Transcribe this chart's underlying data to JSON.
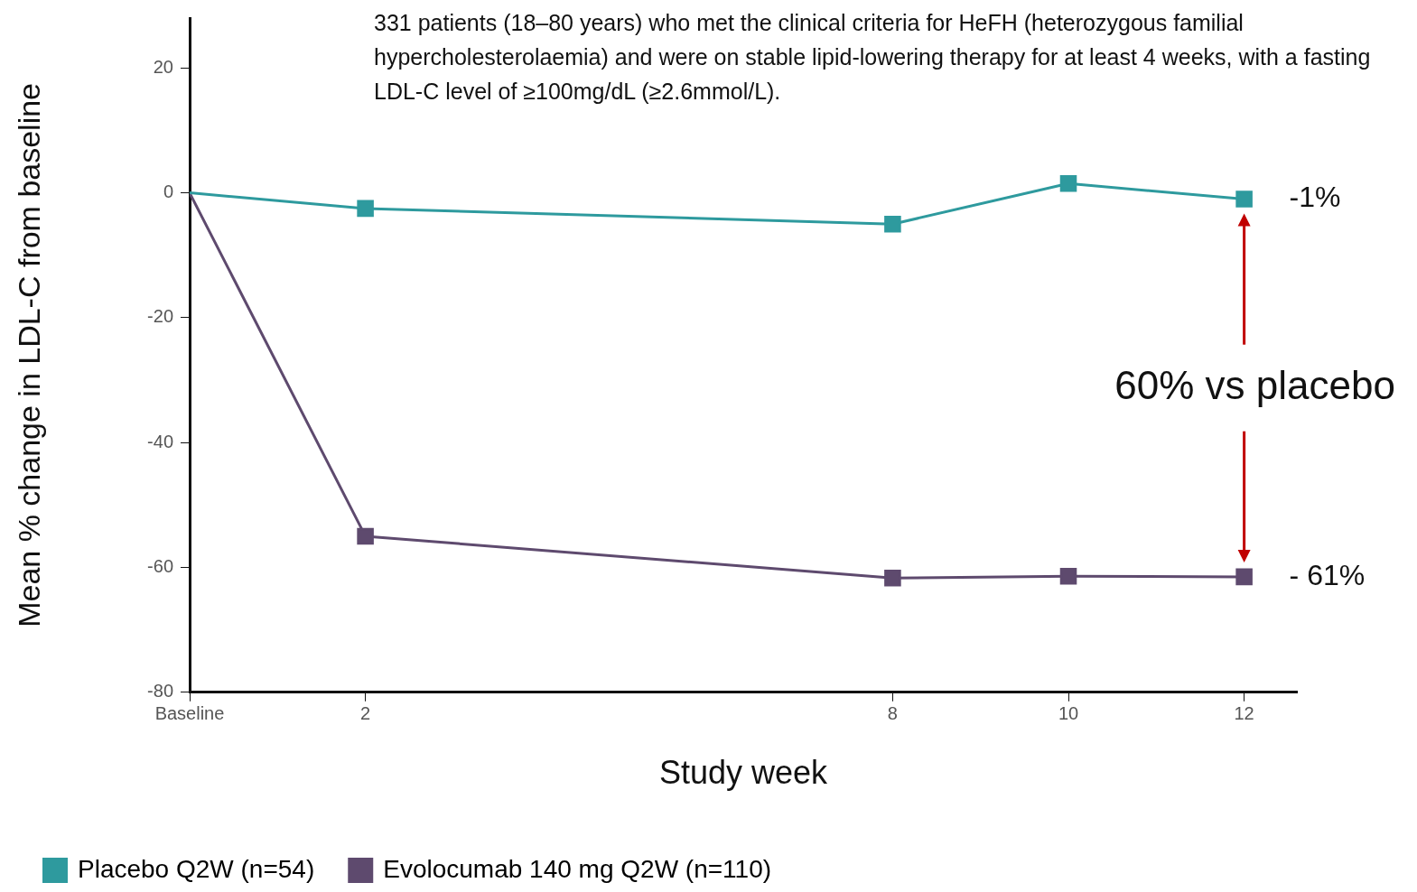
{
  "chart_data": {
    "type": "line",
    "xlabel": "Study week",
    "ylabel": "Mean % change in LDL-C from baseline",
    "xlim": [
      0,
      12.6
    ],
    "xticks": [
      {
        "value": 0,
        "label": "Baseline"
      },
      2,
      8,
      10,
      12
    ],
    "ylim": [
      -80,
      28
    ],
    "yticks": [
      -80,
      -60,
      -40,
      -20,
      0,
      20
    ],
    "grid": false,
    "legend": "bottom",
    "marker": "square",
    "line_style": "solid",
    "x": [
      0,
      2,
      8,
      10,
      12
    ],
    "series": [
      {
        "name": "Placebo Q2W (n=54)",
        "color": "#2e9a9e",
        "values": [
          0,
          -2.5,
          -5,
          1.5,
          -1
        ]
      },
      {
        "name": "Evolocumab 140 mg Q2W (n=110)",
        "color": "#5e4a6e",
        "values": [
          0,
          -55,
          -61.7,
          -61.4,
          -61.5
        ]
      }
    ],
    "annotations": [
      "331 patients (18–80 years) who met the clinical criteria for HeFH (heterozygous familial hypercholesterolaemia) and were on stable lipid-lowering therapy for at least 4 weeks, with a fasting LDL-C level of ≥100mg/dL (≥2.6mmol/L).",
      {
        "text": "-1%",
        "x": 12,
        "y": -1
      },
      {
        "text": "- 61%",
        "x": 12,
        "y": -61.5
      },
      "60% vs placebo"
    ]
  }
}
